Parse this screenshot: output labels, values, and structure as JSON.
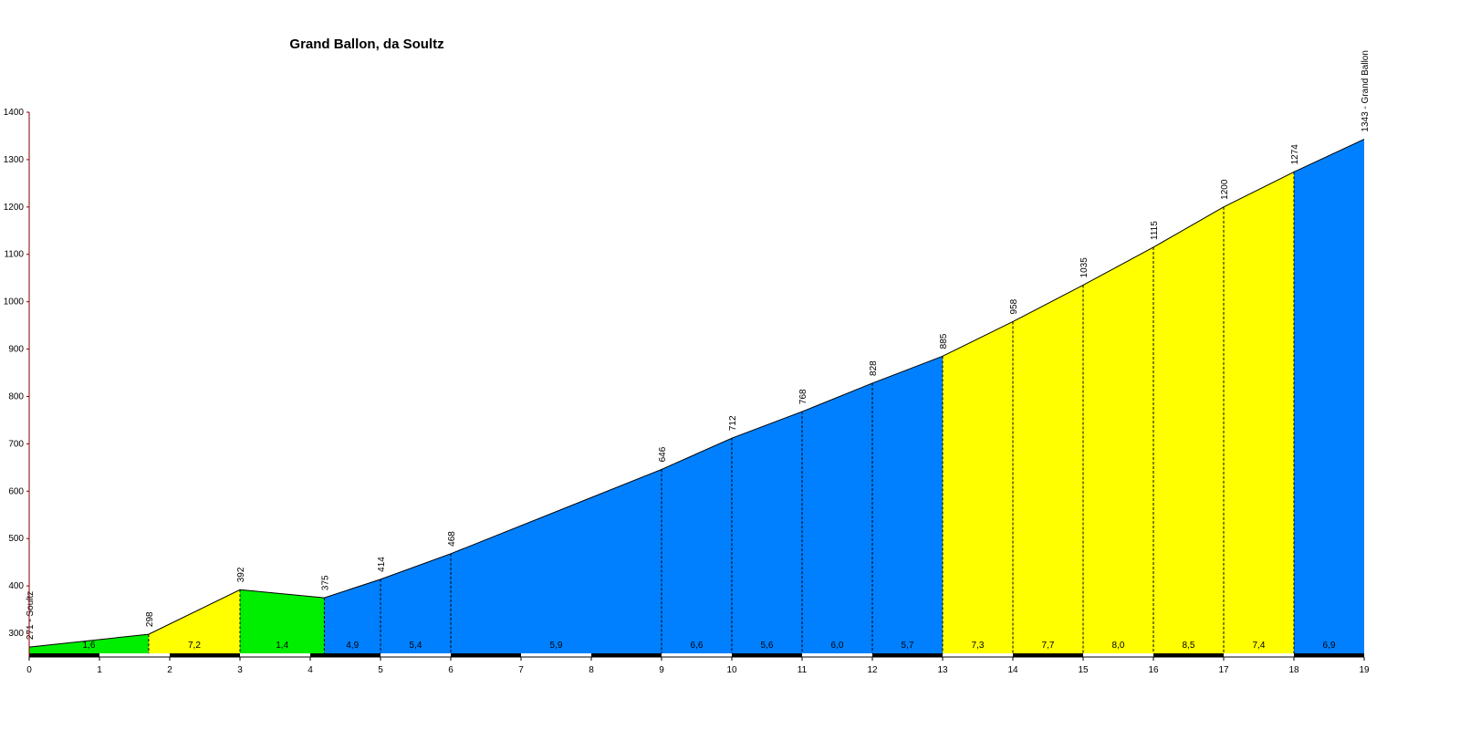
{
  "chart_data": {
    "type": "profile",
    "title": "Grand Ballon, da Soultz",
    "x": [
      0,
      1.7,
      3,
      4.2,
      5,
      6,
      9,
      10,
      11,
      12,
      13,
      14,
      15,
      16,
      17,
      18,
      19
    ],
    "values": [
      271,
      298,
      392,
      375,
      414,
      468,
      646,
      712,
      768,
      828,
      885,
      958,
      1035,
      1115,
      1200,
      1274,
      1343
    ],
    "value_labels": [
      "271 - Soultz",
      "298",
      "392",
      "375",
      "414",
      "468",
      "646",
      "712",
      "768",
      "828",
      "885",
      "958",
      "1035",
      "1115",
      "1200",
      "1274",
      "1343 - Grand Ballon"
    ],
    "grade_labels": [
      "1,6",
      "7,2",
      "1,4",
      "4,9",
      "5,4",
      "5,9",
      "6,6",
      "5,6",
      "6,0",
      "5,7",
      "7,3",
      "7,7",
      "8,0",
      "8,5",
      "7,4",
      "6,9"
    ],
    "segment_colors": [
      "#00ee00",
      "#ffff00",
      "#00ee00",
      "#0080ff",
      "#0080ff",
      "#0080ff",
      "#0080ff",
      "#0080ff",
      "#0080ff",
      "#0080ff",
      "#ffff00",
      "#ffff00",
      "#ffff00",
      "#ffff00",
      "#ffff00",
      "#0080ff"
    ],
    "xlim": [
      0,
      19
    ],
    "xticks": [
      0,
      1,
      2,
      3,
      4,
      5,
      6,
      7,
      8,
      9,
      10,
      11,
      12,
      13,
      14,
      15,
      16,
      17,
      18,
      19
    ],
    "ylim": [
      250,
      1400
    ],
    "yticks": [
      300,
      400,
      500,
      600,
      700,
      800,
      900,
      1000,
      1100,
      1200,
      1300,
      1400
    ]
  }
}
